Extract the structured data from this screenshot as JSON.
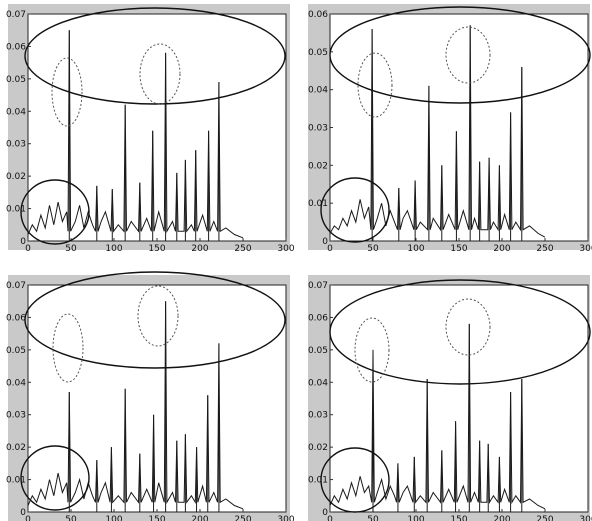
{
  "chart_data": [
    {
      "type": "line",
      "xlim": [
        0,
        300
      ],
      "ylim": [
        0,
        0.07
      ],
      "xticks": [
        "0",
        "50",
        "100",
        "150",
        "200",
        "250",
        "300"
      ],
      "yticks": [
        "0",
        "0.01",
        "0.02",
        "0.03",
        "0.04",
        "0.05",
        "0.06",
        "0.07"
      ],
      "peaks": [
        [
          48,
          0.065
        ],
        [
          80,
          0.017
        ],
        [
          98,
          0.016
        ],
        [
          113,
          0.042
        ],
        [
          130,
          0.018
        ],
        [
          145,
          0.034
        ],
        [
          160,
          0.058
        ],
        [
          173,
          0.021
        ],
        [
          183,
          0.025
        ],
        [
          195,
          0.028
        ],
        [
          210,
          0.034
        ],
        [
          222,
          0.049
        ]
      ],
      "baseline_noise": [
        [
          0,
          0.002
        ],
        [
          5,
          0.005
        ],
        [
          10,
          0.003
        ],
        [
          15,
          0.008
        ],
        [
          20,
          0.004
        ],
        [
          25,
          0.011
        ],
        [
          30,
          0.005
        ],
        [
          35,
          0.012
        ],
        [
          40,
          0.006
        ],
        [
          45,
          0.009
        ],
        [
          55,
          0.006
        ],
        [
          60,
          0.011
        ],
        [
          65,
          0.004
        ],
        [
          70,
          0.009
        ],
        [
          75,
          0.005
        ],
        [
          85,
          0.006
        ],
        [
          90,
          0.009
        ],
        [
          105,
          0.005
        ],
        [
          120,
          0.006
        ],
        [
          138,
          0.007
        ],
        [
          152,
          0.009
        ],
        [
          168,
          0.006
        ],
        [
          190,
          0.005
        ],
        [
          203,
          0.008
        ],
        [
          216,
          0.006
        ],
        [
          230,
          0.004
        ],
        [
          240,
          0.002
        ],
        [
          250,
          0.001
        ]
      ],
      "grid": false
    },
    {
      "type": "line",
      "xlim": [
        0,
        300
      ],
      "ylim": [
        0,
        0.06
      ],
      "xticks": [
        "0",
        "50",
        "100",
        "150",
        "200",
        "250",
        "300"
      ],
      "yticks": [
        "0",
        "0.01",
        "0.02",
        "0.03",
        "0.04",
        "0.05",
        "0.06"
      ],
      "peaks": [
        [
          49,
          0.056
        ],
        [
          80,
          0.014
        ],
        [
          99,
          0.016
        ],
        [
          115,
          0.041
        ],
        [
          130,
          0.02
        ],
        [
          147,
          0.029
        ],
        [
          163,
          0.057
        ],
        [
          174,
          0.021
        ],
        [
          185,
          0.022
        ],
        [
          197,
          0.02
        ],
        [
          210,
          0.034
        ],
        [
          223,
          0.046
        ]
      ],
      "baseline_noise": [
        [
          0,
          0.002
        ],
        [
          5,
          0.004
        ],
        [
          10,
          0.003
        ],
        [
          15,
          0.006
        ],
        [
          20,
          0.004
        ],
        [
          25,
          0.008
        ],
        [
          30,
          0.005
        ],
        [
          35,
          0.011
        ],
        [
          40,
          0.006
        ],
        [
          45,
          0.009
        ],
        [
          55,
          0.006
        ],
        [
          60,
          0.01
        ],
        [
          65,
          0.004
        ],
        [
          70,
          0.008
        ],
        [
          75,
          0.005
        ],
        [
          85,
          0.006
        ],
        [
          90,
          0.008
        ],
        [
          105,
          0.005
        ],
        [
          120,
          0.006
        ],
        [
          138,
          0.007
        ],
        [
          155,
          0.008
        ],
        [
          168,
          0.006
        ],
        [
          190,
          0.005
        ],
        [
          203,
          0.007
        ],
        [
          216,
          0.005
        ],
        [
          232,
          0.004
        ],
        [
          242,
          0.002
        ],
        [
          250,
          0.001
        ]
      ],
      "grid": false
    },
    {
      "type": "line",
      "xlim": [
        0,
        300
      ],
      "ylim": [
        0,
        0.07
      ],
      "xticks": [
        "0",
        "50",
        "100",
        "150",
        "200",
        "250",
        "300"
      ],
      "yticks": [
        "0",
        "0.01",
        "0.02",
        "0.03",
        "0.04",
        "0.05",
        "0.06",
        "0.07"
      ],
      "peaks": [
        [
          48,
          0.037
        ],
        [
          80,
          0.016
        ],
        [
          97,
          0.02
        ],
        [
          113,
          0.038
        ],
        [
          130,
          0.018
        ],
        [
          146,
          0.03
        ],
        [
          160,
          0.065
        ],
        [
          173,
          0.022
        ],
        [
          183,
          0.024
        ],
        [
          196,
          0.02
        ],
        [
          209,
          0.036
        ],
        [
          222,
          0.052
        ]
      ],
      "baseline_noise": [
        [
          0,
          0.002
        ],
        [
          5,
          0.005
        ],
        [
          10,
          0.003
        ],
        [
          15,
          0.007
        ],
        [
          20,
          0.004
        ],
        [
          25,
          0.01
        ],
        [
          30,
          0.005
        ],
        [
          35,
          0.012
        ],
        [
          40,
          0.006
        ],
        [
          45,
          0.009
        ],
        [
          55,
          0.006
        ],
        [
          60,
          0.01
        ],
        [
          65,
          0.004
        ],
        [
          70,
          0.009
        ],
        [
          75,
          0.005
        ],
        [
          85,
          0.006
        ],
        [
          90,
          0.009
        ],
        [
          105,
          0.005
        ],
        [
          120,
          0.006
        ],
        [
          138,
          0.007
        ],
        [
          152,
          0.009
        ],
        [
          168,
          0.006
        ],
        [
          190,
          0.005
        ],
        [
          203,
          0.008
        ],
        [
          216,
          0.006
        ],
        [
          230,
          0.004
        ],
        [
          240,
          0.002
        ],
        [
          250,
          0.001
        ]
      ],
      "grid": false
    },
    {
      "type": "line",
      "xlim": [
        0,
        300
      ],
      "ylim": [
        0,
        0.07
      ],
      "xticks": [
        "0",
        "50",
        "100",
        "150",
        "200",
        "250",
        "300"
      ],
      "yticks": [
        "0",
        "0.01",
        "0.02",
        "0.03",
        "0.04",
        "0.05",
        "0.06",
        "0.07"
      ],
      "peaks": [
        [
          50,
          0.05
        ],
        [
          79,
          0.015
        ],
        [
          98,
          0.017
        ],
        [
          113,
          0.041
        ],
        [
          130,
          0.019
        ],
        [
          146,
          0.028
        ],
        [
          162,
          0.058
        ],
        [
          174,
          0.022
        ],
        [
          184,
          0.021
        ],
        [
          197,
          0.017
        ],
        [
          210,
          0.037
        ],
        [
          223,
          0.041
        ]
      ],
      "baseline_noise": [
        [
          0,
          0.002
        ],
        [
          5,
          0.005
        ],
        [
          10,
          0.003
        ],
        [
          15,
          0.007
        ],
        [
          20,
          0.004
        ],
        [
          25,
          0.009
        ],
        [
          30,
          0.005
        ],
        [
          35,
          0.011
        ],
        [
          40,
          0.006
        ],
        [
          45,
          0.008
        ],
        [
          55,
          0.006
        ],
        [
          60,
          0.01
        ],
        [
          65,
          0.004
        ],
        [
          70,
          0.008
        ],
        [
          75,
          0.005
        ],
        [
          85,
          0.006
        ],
        [
          90,
          0.008
        ],
        [
          105,
          0.005
        ],
        [
          120,
          0.006
        ],
        [
          138,
          0.007
        ],
        [
          155,
          0.008
        ],
        [
          168,
          0.006
        ],
        [
          190,
          0.005
        ],
        [
          203,
          0.007
        ],
        [
          216,
          0.005
        ],
        [
          232,
          0.004
        ],
        [
          242,
          0.002
        ],
        [
          250,
          0.001
        ]
      ],
      "grid": false
    }
  ],
  "annotations": {
    "large_oval": "solid black ellipse enclosing the tallest peaks",
    "small_oval_left": "dotted ellipse around peak near x=50",
    "small_oval_center": "dotted ellipse around peak near x=160",
    "low_region_oval": "solid black ellipse around low-amplitude region at x=0-40"
  }
}
